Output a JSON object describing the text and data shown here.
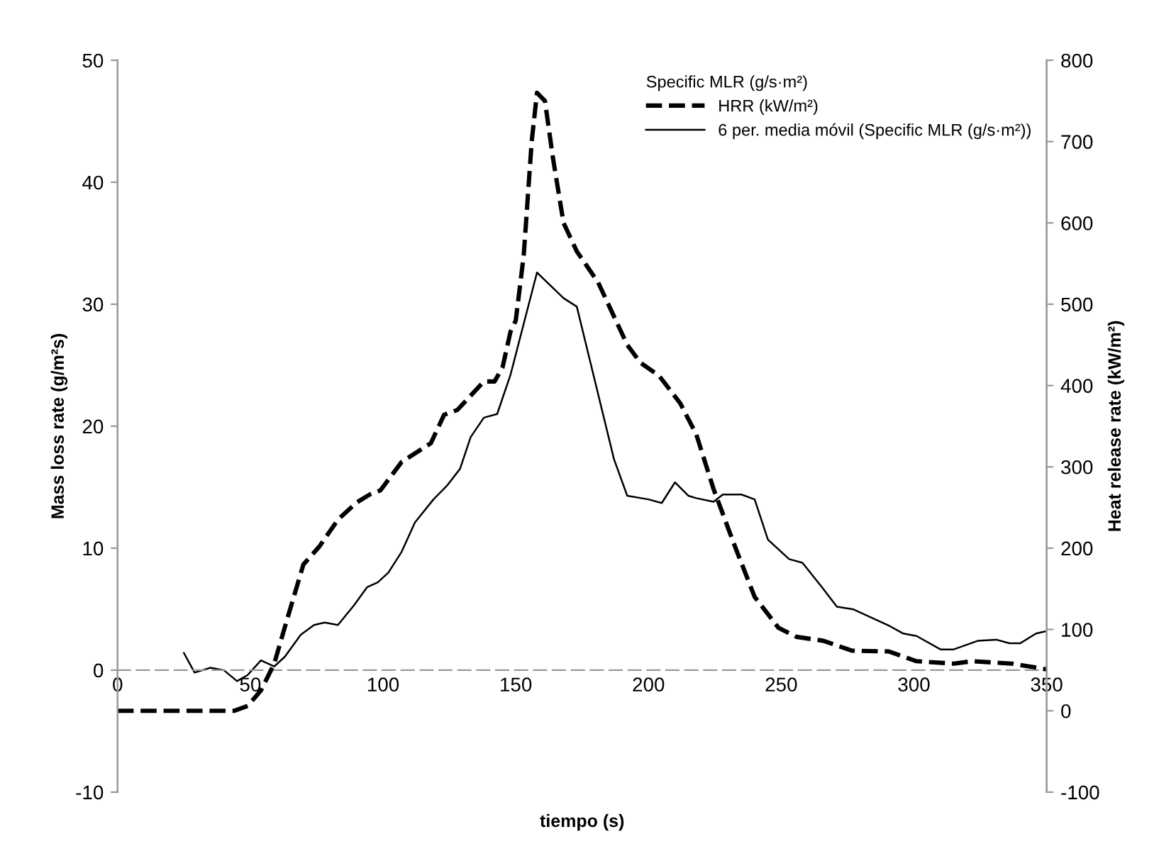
{
  "chart_data": {
    "type": "line",
    "xlabel": "tiempo (s)",
    "ylabel": "Mass loss rate (g/m²s)",
    "y2label": "Heat release rate (kW/m²)",
    "legend_title": "Specific MLR (g/s·m²)",
    "legend": "top right",
    "marker": "none",
    "xlim": [
      0,
      350
    ],
    "xticks": [
      0,
      50,
      100,
      150,
      200,
      250,
      300,
      350
    ],
    "ylim": [
      -10,
      50
    ],
    "yticks": [
      -10,
      0,
      10,
      20,
      30,
      40,
      50
    ],
    "y2lim": [
      -100,
      800
    ],
    "y2ticks": [
      -100,
      0,
      100,
      200,
      300,
      400,
      500,
      600,
      700,
      800
    ],
    "series": [
      {
        "name": "HRR (kW/m²)",
        "color": "#000000",
        "axis": "y2",
        "line_style": "dashed",
        "x": [
          0,
          14,
          44,
          49,
          54,
          59,
          64,
          70,
          76,
          83,
          90,
          95,
          99,
          107,
          118,
          123,
          128,
          138,
          142,
          145,
          148,
          150,
          153,
          156,
          158,
          161,
          164,
          168,
          173,
          181,
          192,
          197,
          204,
          212,
          218,
          224.5,
          232,
          240,
          249,
          255.7,
          266,
          276.6,
          290.6,
          301,
          315,
          322,
          337,
          350
        ],
        "values": [
          0,
          0,
          0,
          6,
          25,
          58,
          114,
          180,
          202,
          235,
          256,
          266,
          271,
          306,
          329,
          364,
          370,
          405,
          405,
          422,
          466,
          480,
          560,
          700,
          760,
          750,
          680,
          600,
          565,
          527,
          450,
          428,
          412,
          378,
          340,
          273,
          207,
          140,
          102,
          91,
          86,
          74,
          73,
          61,
          58,
          61,
          58,
          51
        ]
      },
      {
        "name": "6 per. media móvil (Specific MLR (g/s·m²))",
        "color": "#000000",
        "axis": "y",
        "line_style": "solid",
        "x": [
          25,
          29,
          35,
          40,
          45,
          49,
          54,
          59,
          63,
          69,
          74,
          78,
          83,
          89,
          94,
          98,
          102,
          107,
          112,
          119,
          124,
          129,
          133,
          138,
          143,
          148,
          158,
          168,
          173,
          187,
          192,
          200,
          205,
          210,
          215,
          218,
          224.5,
          228,
          235,
          240,
          245,
          253,
          258,
          265,
          271,
          277,
          291,
          296,
          301,
          310,
          315,
          324,
          331,
          336,
          340,
          346,
          350
        ],
        "values": [
          1.4,
          -0.2,
          0.2,
          0,
          -0.9,
          -0.4,
          0.8,
          0.3,
          1.1,
          2.9,
          3.7,
          3.9,
          3.7,
          5.3,
          6.8,
          7.2,
          8.0,
          9.7,
          12.1,
          14.0,
          15.1,
          16.5,
          19.1,
          20.7,
          21.0,
          24.2,
          32.6,
          30.5,
          29.8,
          17.3,
          14.3,
          14.0,
          13.7,
          15.4,
          14.3,
          14.1,
          13.8,
          14.4,
          14.4,
          14.0,
          10.7,
          9.1,
          8.8,
          6.9,
          5.2,
          5.0,
          3.6,
          3.0,
          2.8,
          1.7,
          1.7,
          2.4,
          2.5,
          2.2,
          2.2,
          3.0,
          3.2
        ]
      }
    ]
  }
}
